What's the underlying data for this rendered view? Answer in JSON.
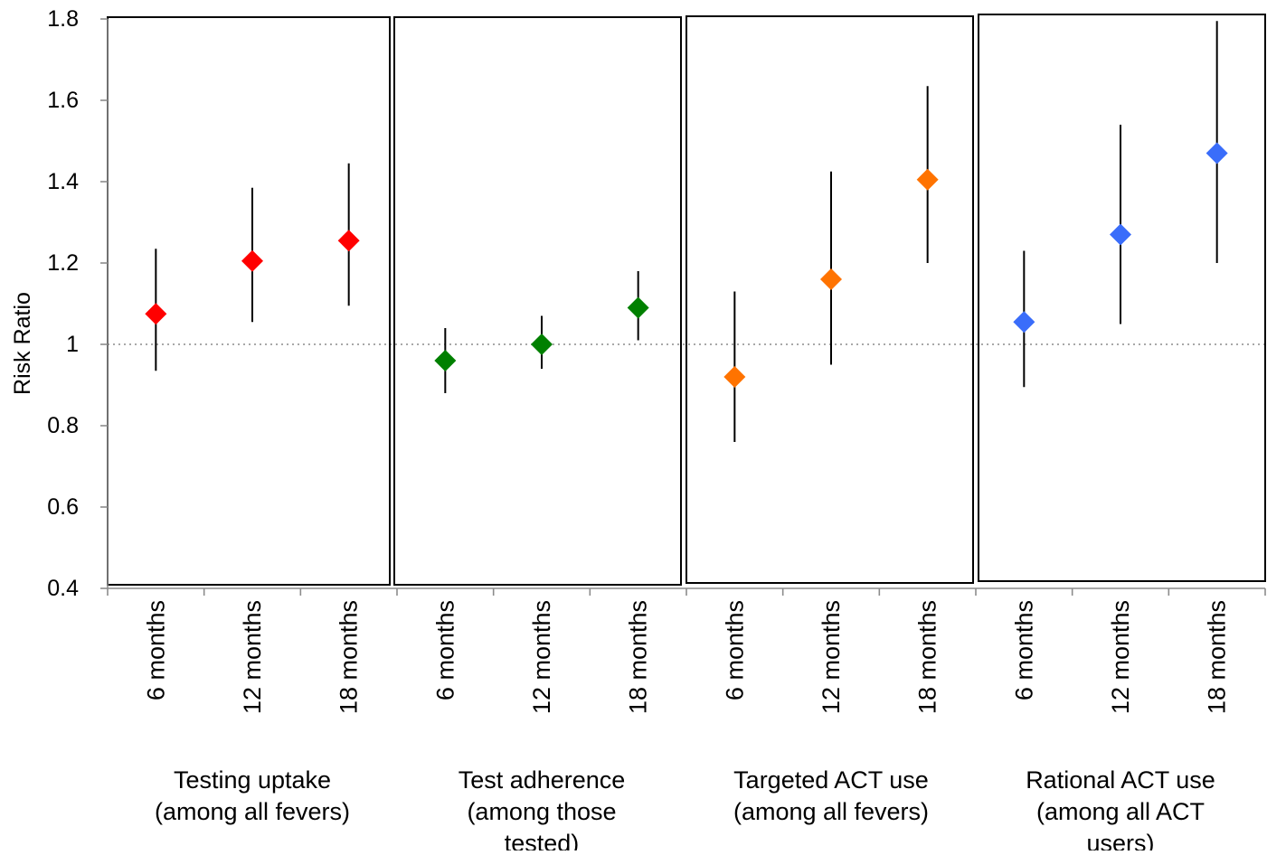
{
  "chart_data": {
    "type": "scatter",
    "title": "",
    "ylabel": "Risk Ratio",
    "ylim": [
      0.4,
      1.8
    ],
    "yticks": [
      0.4,
      0.6,
      0.8,
      1,
      1.2,
      1.4,
      1.6,
      1.8
    ],
    "ytick_labels": [
      "0.4",
      "0.6",
      "0.8",
      "1",
      "1.2",
      "1.4",
      "1.6",
      "1.8"
    ],
    "reference_line": 1,
    "grid": false,
    "legend": "none",
    "marker": "diamond",
    "groups": [
      {
        "label": [
          "Testing uptake",
          "(among all fevers)"
        ],
        "color": "#ff0000",
        "categories": [
          "6 months",
          "12 months",
          "18 months"
        ],
        "values": [
          1.075,
          1.205,
          1.255
        ],
        "ci_low": [
          0.935,
          1.055,
          1.095
        ],
        "ci_high": [
          1.235,
          1.385,
          1.445
        ]
      },
      {
        "label": [
          "Test adherence",
          "(among those",
          "tested)"
        ],
        "color": "#008000",
        "categories": [
          "6 months",
          "12 months",
          "18 months"
        ],
        "values": [
          0.96,
          1.0,
          1.09
        ],
        "ci_low": [
          0.88,
          0.94,
          1.01
        ],
        "ci_high": [
          1.04,
          1.07,
          1.18
        ]
      },
      {
        "label": [
          "Targeted ACT use",
          "(among all fevers)"
        ],
        "color": "#ff7300",
        "categories": [
          "6 months",
          "12 months",
          "18 months"
        ],
        "values": [
          0.92,
          1.16,
          1.405
        ],
        "ci_low": [
          0.76,
          0.95,
          1.2
        ],
        "ci_high": [
          1.13,
          1.425,
          1.635
        ]
      },
      {
        "label": [
          "Rational ACT use",
          "(among all ACT",
          "users)"
        ],
        "color": "#3a6dfa",
        "categories": [
          "6 months",
          "12 months",
          "18 months"
        ],
        "values": [
          1.055,
          1.27,
          1.47
        ],
        "ci_low": [
          0.895,
          1.05,
          1.2
        ],
        "ci_high": [
          1.23,
          1.54,
          1.795
        ]
      }
    ]
  }
}
